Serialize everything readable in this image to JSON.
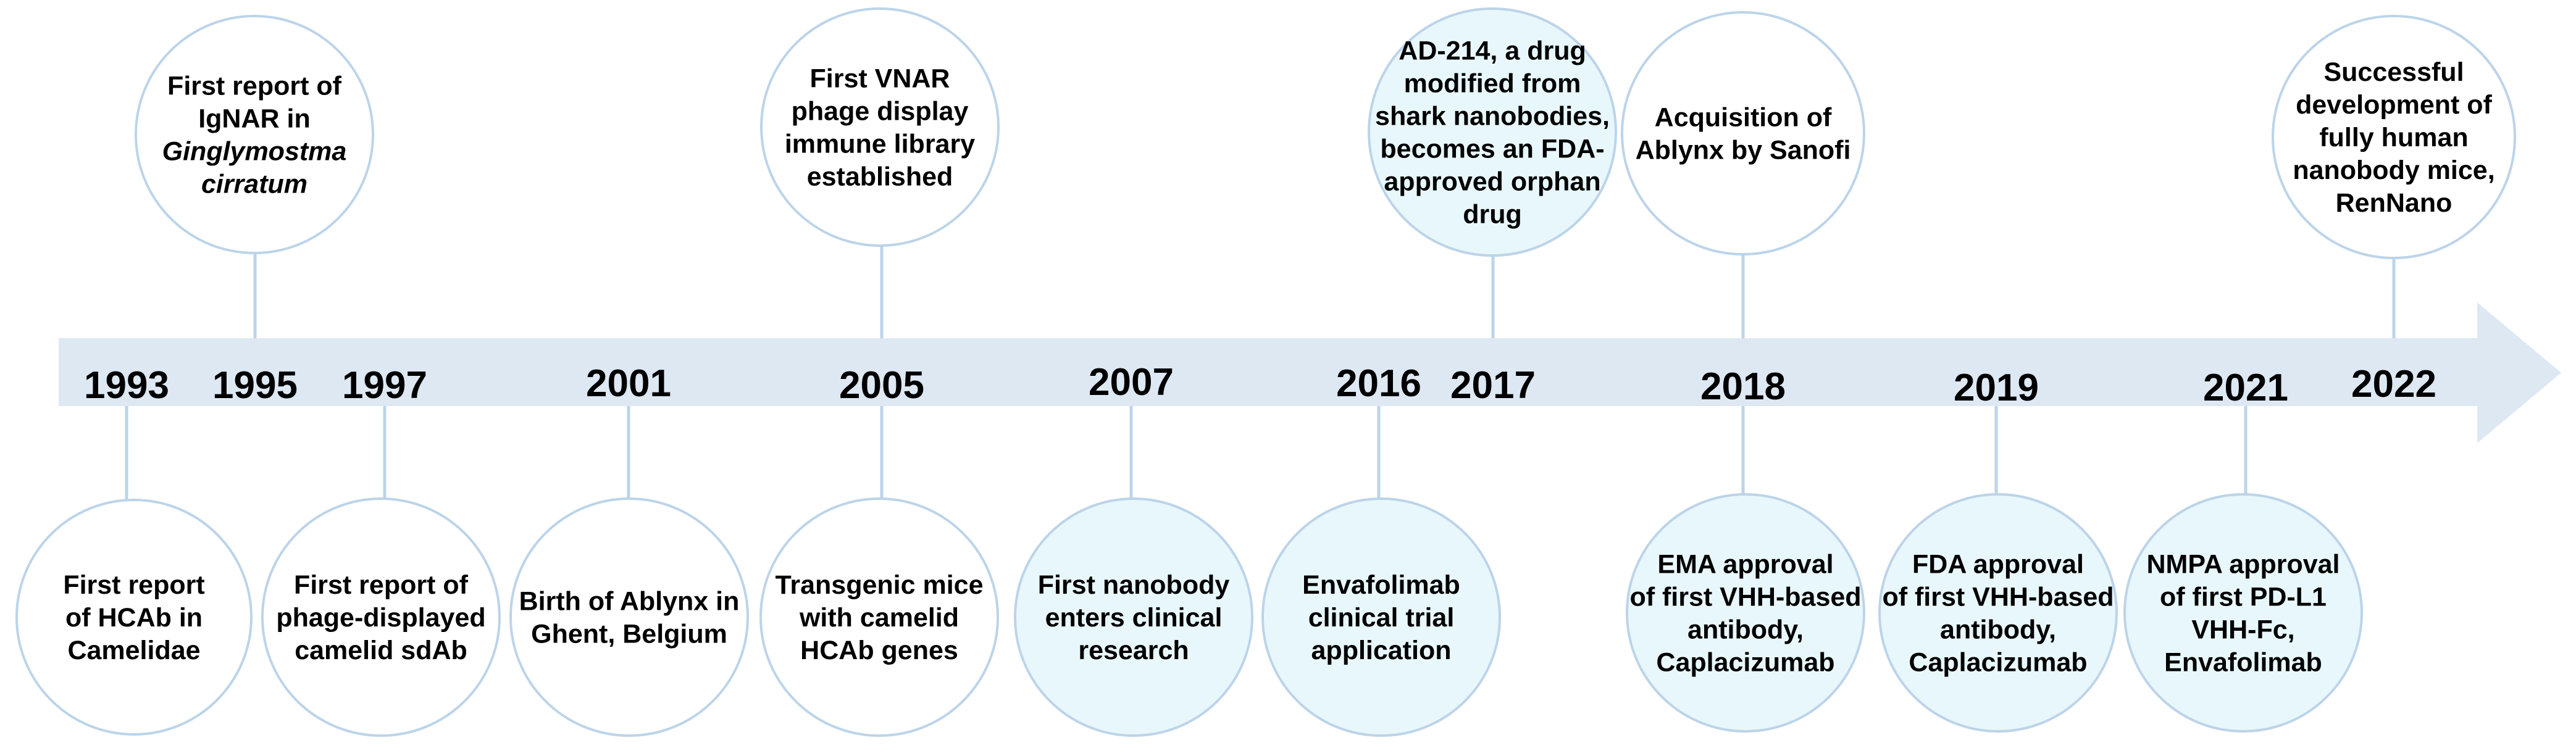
{
  "colors": {
    "arrow": "#dde8f3",
    "circle_stroke": "#bcd4e9",
    "fill_white": "#ffffff",
    "fill_highlight": "#e8f7fb"
  },
  "years": [
    "1993",
    "1995",
    "1997",
    "2001",
    "2005",
    "2007",
    "2016",
    "2017",
    "2018",
    "2019",
    "2021",
    "2022"
  ],
  "top_events": [
    {
      "year": "1995",
      "highlight": false,
      "lines": [
        {
          "t": "First report of"
        },
        {
          "t": "IgNAR in"
        },
        {
          "t": "Ginglymostma",
          "italic": true
        },
        {
          "t": "cirratum",
          "italic": true
        }
      ]
    },
    {
      "year": "2005",
      "highlight": false,
      "lines": [
        {
          "t": "First VNAR"
        },
        {
          "t": "phage display"
        },
        {
          "t": "immune library"
        },
        {
          "t": "established"
        }
      ]
    },
    {
      "year": "2017",
      "highlight": true,
      "lines": [
        {
          "t": "AD-214, a drug"
        },
        {
          "t": "modified from"
        },
        {
          "t": "shark nanobodies,"
        },
        {
          "t": "becomes an FDA-"
        },
        {
          "t": "approved orphan"
        },
        {
          "t": "drug"
        }
      ]
    },
    {
      "year": "2018",
      "highlight": false,
      "lines": [
        {
          "t": "Acquisition of"
        },
        {
          "t": "Ablynx by Sanofi"
        }
      ]
    },
    {
      "year": "2022",
      "highlight": false,
      "lines": [
        {
          "t": "Successful"
        },
        {
          "t": "development of"
        },
        {
          "t": "fully human"
        },
        {
          "t": "nanobody mice,"
        },
        {
          "t": "RenNano"
        }
      ]
    }
  ],
  "bottom_events": [
    {
      "year": "1993",
      "highlight": false,
      "lines": [
        {
          "t": "First report"
        },
        {
          "t": "of HCAb in"
        },
        {
          "t": "Camelidae"
        }
      ]
    },
    {
      "year": "1997",
      "highlight": false,
      "lines": [
        {
          "t": "First report of"
        },
        {
          "t": "phage-displayed"
        },
        {
          "t": "camelid sdAb"
        }
      ]
    },
    {
      "year": "2001",
      "highlight": false,
      "lines": [
        {
          "t": "Birth of Ablynx in"
        },
        {
          "t": "Ghent, Belgium"
        }
      ]
    },
    {
      "year": "2005",
      "highlight": false,
      "lines": [
        {
          "t": "Transgenic mice"
        },
        {
          "t": "with camelid"
        },
        {
          "t": "HCAb genes"
        }
      ]
    },
    {
      "year": "2007",
      "highlight": true,
      "lines": [
        {
          "t": "First nanobody"
        },
        {
          "t": "enters clinical"
        },
        {
          "t": "research"
        }
      ]
    },
    {
      "year": "2016",
      "highlight": true,
      "lines": [
        {
          "t": "Envafolimab"
        },
        {
          "t": "clinical trial"
        },
        {
          "t": "application"
        }
      ]
    },
    {
      "year": "2018",
      "highlight": true,
      "lines": [
        {
          "t": "EMA approval"
        },
        {
          "t": "of first VHH-based"
        },
        {
          "t": "antibody,"
        },
        {
          "t": "Caplacizumab"
        }
      ]
    },
    {
      "year": "2019",
      "highlight": true,
      "lines": [
        {
          "t": "FDA approval"
        },
        {
          "t": "of first VHH-based"
        },
        {
          "t": "antibody,"
        },
        {
          "t": "Caplacizumab"
        }
      ]
    },
    {
      "year": "2021",
      "highlight": true,
      "lines": [
        {
          "t": "NMPA approval"
        },
        {
          "t": "of first PD-L1"
        },
        {
          "t": "VHH-Fc,"
        },
        {
          "t": "Envafolimab"
        }
      ]
    }
  ]
}
